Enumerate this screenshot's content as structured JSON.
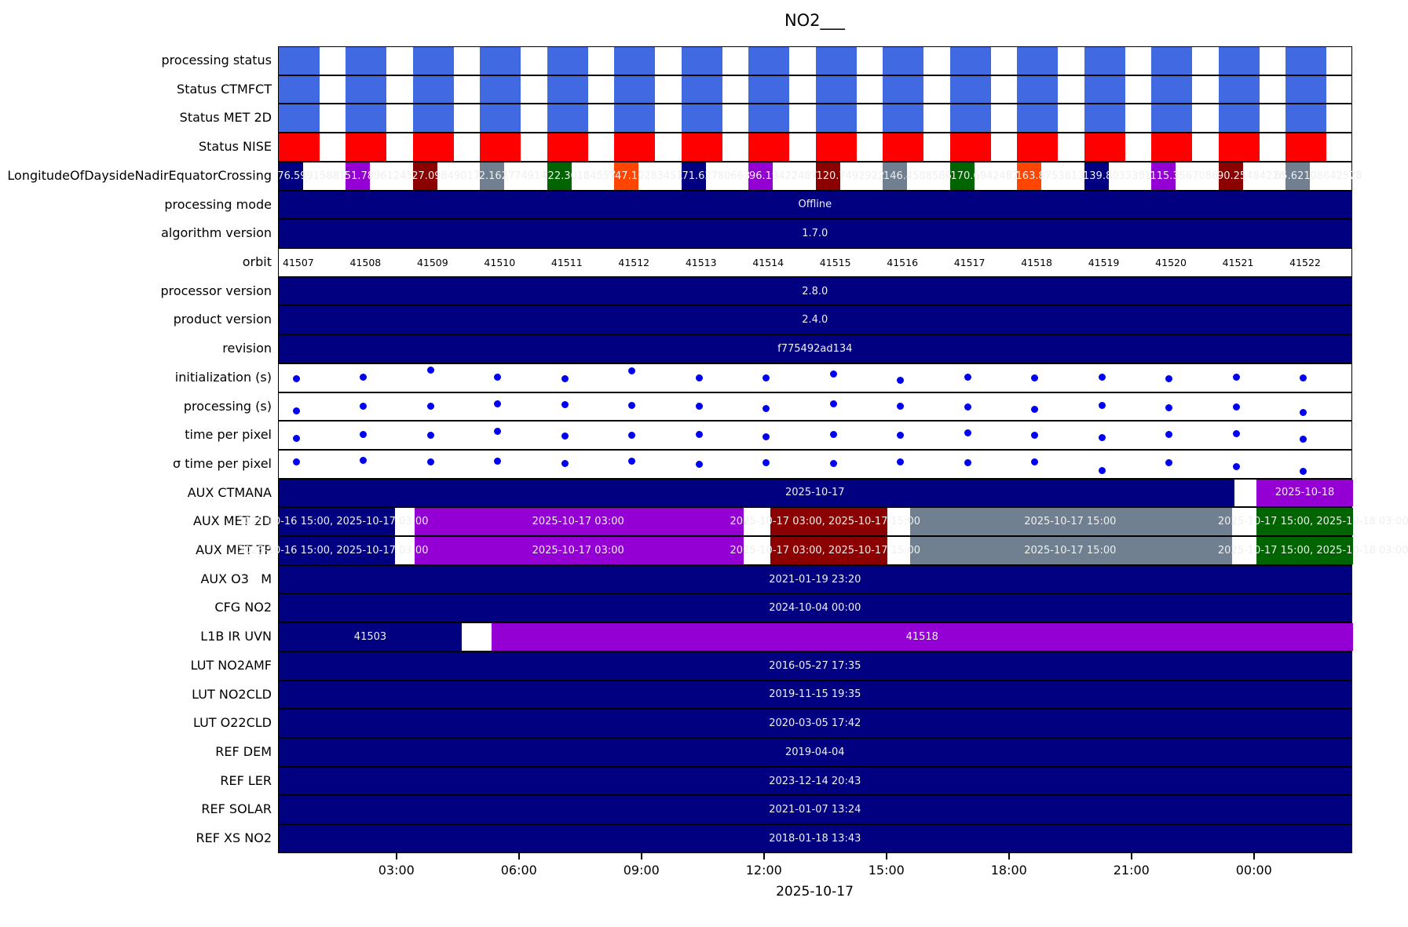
{
  "chart_data": {
    "type": "timeline",
    "title": "NO2___",
    "x_axis": {
      "label": "2025-10-17",
      "ticks": [
        {
          "hour": 3,
          "label": "03:00"
        },
        {
          "hour": 6,
          "label": "06:00"
        },
        {
          "hour": 9,
          "label": "09:00"
        },
        {
          "hour": 12,
          "label": "12:00"
        },
        {
          "hour": 15,
          "label": "15:00"
        },
        {
          "hour": 18,
          "label": "18:00"
        },
        {
          "hour": 21,
          "label": "21:00"
        },
        {
          "hour": 24,
          "label": "00:00"
        }
      ],
      "range_hours": [
        0.1,
        26.4
      ]
    },
    "orbits": [
      "41507",
      "41508",
      "41509",
      "41510",
      "41511",
      "41512",
      "41513",
      "41514",
      "41515",
      "41516",
      "41517",
      "41518",
      "41519",
      "41520",
      "41521",
      "41522"
    ],
    "colors": {
      "bar_blue": "#4169E1",
      "bar_red": "#FF0000",
      "navy": "#000080",
      "violet": "#9400D3",
      "darkred": "#8B0000",
      "slate": "#708090",
      "green": "#006400",
      "orange": "#FF4500",
      "dot": "#0000F0",
      "text_light": "#EFEFEF"
    },
    "longitude_color_cycle": [
      "navy",
      "violet",
      "darkred",
      "slate",
      "green",
      "orange"
    ],
    "rows": [
      {
        "label": "processing status",
        "type": "orbit_bars",
        "color": "bar_blue"
      },
      {
        "label": "Status CTMFCT",
        "type": "orbit_bars",
        "color": "bar_blue"
      },
      {
        "label": "Status MET 2D",
        "type": "orbit_bars",
        "color": "bar_blue"
      },
      {
        "label": "Status NISE",
        "type": "orbit_bars",
        "color": "bar_red"
      },
      {
        "label": "LongitudeOfDaysideNadirEquatorCrossing",
        "type": "orbit_values",
        "values": [
          "76.59915881",
          "51.78961245",
          "27.09849017",
          "2.162774914",
          "-22.30184557",
          "-47.10283451",
          "-71.62780663",
          "-96.19422487",
          "-120.7492922",
          "-146.4588586",
          "-170.6942487",
          "163.8753813",
          "139.8033381",
          "115.3567086",
          "90.25484226",
          "65.62108642578"
        ]
      },
      {
        "label": "processing mode",
        "type": "full_bar",
        "text": "Offline"
      },
      {
        "label": "algorithm version",
        "type": "full_bar",
        "text": "1.7.0"
      },
      {
        "label": "orbit",
        "type": "orbit_numbers"
      },
      {
        "label": "processor version",
        "type": "full_bar",
        "text": "2.8.0"
      },
      {
        "label": "product version",
        "type": "full_bar",
        "text": "2.4.0"
      },
      {
        "label": "revision",
        "type": "full_bar",
        "text": "f775492ad134"
      },
      {
        "label": "initialization (s)",
        "type": "scatter",
        "values": [
          0.4,
          0.52,
          0.93,
          0.5,
          0.42,
          0.9,
          0.48,
          0.46,
          0.68,
          0.33,
          0.5,
          0.46,
          0.52,
          0.42,
          0.5,
          0.46
        ]
      },
      {
        "label": "processing (s)",
        "type": "scatter",
        "values": [
          0.22,
          0.5,
          0.48,
          0.65,
          0.58,
          0.52,
          0.5,
          0.36,
          0.62,
          0.5,
          0.46,
          0.28,
          0.52,
          0.4,
          0.46,
          0.12
        ]
      },
      {
        "label": "time per pixel",
        "type": "scatter",
        "values": [
          0.28,
          0.52,
          0.48,
          0.72,
          0.42,
          0.5,
          0.54,
          0.4,
          0.52,
          0.46,
          0.62,
          0.5,
          0.34,
          0.52,
          0.58,
          0.25
        ]
      },
      {
        "label": "σ time per pixel",
        "type": "scatter",
        "values": [
          0.62,
          0.7,
          0.6,
          0.64,
          0.52,
          0.66,
          0.48,
          0.58,
          0.52,
          0.6,
          0.55,
          0.62,
          0.06,
          0.58,
          0.32,
          0.04
        ]
      },
      {
        "label": "AUX CTMANA",
        "type": "segments",
        "segments": [
          {
            "h0": 0.1,
            "h1": 23.5,
            "color": "navy"
          },
          {
            "h0": 24.05,
            "h1": 26.4,
            "color": "violet",
            "text": "2025-10-18"
          }
        ],
        "labels": [
          {
            "text": "2025-10-17",
            "center_h": 13.25
          }
        ]
      },
      {
        "label": "AUX MET 2D",
        "type": "segments",
        "segments": [
          {
            "h0": 0.1,
            "h1": 2.95,
            "color": "navy"
          },
          {
            "h0": 3.43,
            "h1": 11.48,
            "color": "violet"
          },
          {
            "h0": 12.14,
            "h1": 15.0,
            "color": "darkred"
          },
          {
            "h0": 15.56,
            "h1": 23.45,
            "color": "slate"
          },
          {
            "h0": 24.05,
            "h1": 26.4,
            "color": "green"
          }
        ],
        "labels": [
          {
            "text": "2025-10-16 15:00, 2025-10-17 03:00",
            "center_h": 1.45
          },
          {
            "text": "2025-10-17 03:00",
            "center_h": 7.45
          },
          {
            "text": "2025-10-17 03:00, 2025-10-17 15:00",
            "center_h": 13.5
          },
          {
            "text": "2025-10-17 15:00",
            "center_h": 19.5
          },
          {
            "text": "2025-10-17 15:00, 2025-10-18 03:00",
            "center_h": 25.45
          }
        ]
      },
      {
        "label": "AUX MET TP",
        "type": "segments",
        "segments": [
          {
            "h0": 0.1,
            "h1": 2.95,
            "color": "navy"
          },
          {
            "h0": 3.43,
            "h1": 11.48,
            "color": "violet"
          },
          {
            "h0": 12.14,
            "h1": 15.0,
            "color": "darkred"
          },
          {
            "h0": 15.56,
            "h1": 23.45,
            "color": "slate"
          },
          {
            "h0": 24.05,
            "h1": 26.4,
            "color": "green"
          }
        ],
        "labels": [
          {
            "text": "2025-10-16 15:00, 2025-10-17 03:00",
            "center_h": 1.45
          },
          {
            "text": "2025-10-17 03:00",
            "center_h": 7.45
          },
          {
            "text": "2025-10-17 03:00, 2025-10-17 15:00",
            "center_h": 13.5
          },
          {
            "text": "2025-10-17 15:00",
            "center_h": 19.5
          },
          {
            "text": "2025-10-17 15:00, 2025-10-18 03:00",
            "center_h": 25.45
          }
        ]
      },
      {
        "label": "AUX O3   M",
        "type": "full_bar",
        "text": "2021-01-19 23:20"
      },
      {
        "label": "CFG NO2",
        "type": "full_bar",
        "text": "2024-10-04 00:00"
      },
      {
        "label": "L1B IR UVN",
        "type": "segments",
        "segments": [
          {
            "h0": 0.1,
            "h1": 4.58,
            "color": "navy",
            "text": "41503"
          },
          {
            "h0": 5.31,
            "h1": 26.4,
            "color": "violet",
            "text": "41518"
          }
        ]
      },
      {
        "label": "LUT NO2AMF",
        "type": "full_bar",
        "text": "2016-05-27 17:35"
      },
      {
        "label": "LUT NO2CLD",
        "type": "full_bar",
        "text": "2019-11-15 19:35"
      },
      {
        "label": "LUT O22CLD",
        "type": "full_bar",
        "text": "2020-03-05 17:42"
      },
      {
        "label": "REF DEM",
        "type": "full_bar",
        "text": "2019-04-04"
      },
      {
        "label": "REF LER",
        "type": "full_bar",
        "text": "2023-12-14 20:43"
      },
      {
        "label": "REF SOLAR",
        "type": "full_bar",
        "text": "2021-01-07 13:24"
      },
      {
        "label": "REF XS NO2",
        "type": "full_bar",
        "text": "2018-01-18 13:43"
      }
    ]
  }
}
